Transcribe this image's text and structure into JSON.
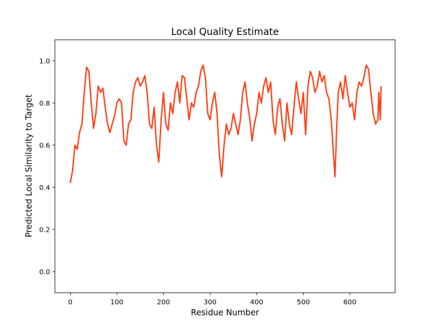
{
  "chart_data": {
    "type": "line",
    "title": "Local Quality Estimate",
    "xlabel": "Residue Number",
    "ylabel": "Predicted Local Similarity to Target",
    "xlim": [
      -33,
      697
    ],
    "ylim": [
      -0.1,
      1.1
    ],
    "xticks": [
      0,
      100,
      200,
      300,
      400,
      500,
      600
    ],
    "yticks": [
      {
        "value": 0,
        "label": "0.0"
      },
      0.2,
      0.4,
      0.6,
      0.8,
      {
        "value": 1,
        "label": "1.0"
      }
    ],
    "grid": false,
    "series": [
      {
        "name": "Local Quality",
        "color": "#ff4016",
        "x": [
          0,
          5,
          10,
          15,
          20,
          25,
          30,
          35,
          40,
          45,
          50,
          55,
          60,
          65,
          70,
          75,
          80,
          85,
          90,
          95,
          100,
          105,
          110,
          115,
          120,
          125,
          130,
          135,
          140,
          145,
          150,
          155,
          160,
          165,
          170,
          175,
          180,
          185,
          190,
          195,
          200,
          205,
          210,
          215,
          220,
          225,
          230,
          235,
          240,
          245,
          250,
          255,
          260,
          265,
          270,
          275,
          280,
          285,
          290,
          295,
          300,
          305,
          310,
          315,
          320,
          325,
          330,
          335,
          340,
          345,
          350,
          355,
          360,
          365,
          370,
          375,
          380,
          385,
          390,
          395,
          400,
          405,
          410,
          415,
          420,
          425,
          430,
          435,
          440,
          445,
          450,
          455,
          460,
          465,
          470,
          475,
          480,
          485,
          490,
          495,
          500,
          505,
          510,
          515,
          520,
          525,
          530,
          535,
          540,
          545,
          550,
          555,
          560,
          565,
          568,
          572,
          575,
          580,
          585,
          590,
          595,
          600,
          605,
          610,
          615,
          620,
          625,
          630,
          635,
          640,
          645,
          650,
          655,
          660,
          662,
          665,
          667
        ],
        "values": [
          0.42,
          0.48,
          0.6,
          0.58,
          0.66,
          0.7,
          0.85,
          0.97,
          0.95,
          0.8,
          0.68,
          0.75,
          0.88,
          0.85,
          0.87,
          0.78,
          0.7,
          0.66,
          0.7,
          0.74,
          0.8,
          0.82,
          0.8,
          0.62,
          0.6,
          0.7,
          0.72,
          0.85,
          0.9,
          0.92,
          0.88,
          0.9,
          0.93,
          0.85,
          0.7,
          0.68,
          0.78,
          0.6,
          0.52,
          0.72,
          0.85,
          0.7,
          0.67,
          0.8,
          0.75,
          0.85,
          0.9,
          0.8,
          0.93,
          0.92,
          0.82,
          0.72,
          0.8,
          0.78,
          0.85,
          0.88,
          0.95,
          0.98,
          0.92,
          0.75,
          0.72,
          0.8,
          0.85,
          0.75,
          0.55,
          0.45,
          0.6,
          0.7,
          0.65,
          0.68,
          0.75,
          0.7,
          0.65,
          0.72,
          0.85,
          0.9,
          0.8,
          0.73,
          0.62,
          0.7,
          0.75,
          0.85,
          0.8,
          0.88,
          0.92,
          0.85,
          0.9,
          0.72,
          0.65,
          0.78,
          0.82,
          0.7,
          0.62,
          0.8,
          0.7,
          0.65,
          0.78,
          0.9,
          0.82,
          0.75,
          0.85,
          0.65,
          0.88,
          0.95,
          0.92,
          0.85,
          0.88,
          0.95,
          0.9,
          0.93,
          0.85,
          0.82,
          0.72,
          0.55,
          0.45,
          0.7,
          0.85,
          0.9,
          0.82,
          0.93,
          0.85,
          0.78,
          0.8,
          0.72,
          0.85,
          0.9,
          0.88,
          0.92,
          0.98,
          0.96,
          0.85,
          0.75,
          0.7,
          0.72,
          0.85,
          0.72,
          0.88
        ]
      }
    ]
  }
}
